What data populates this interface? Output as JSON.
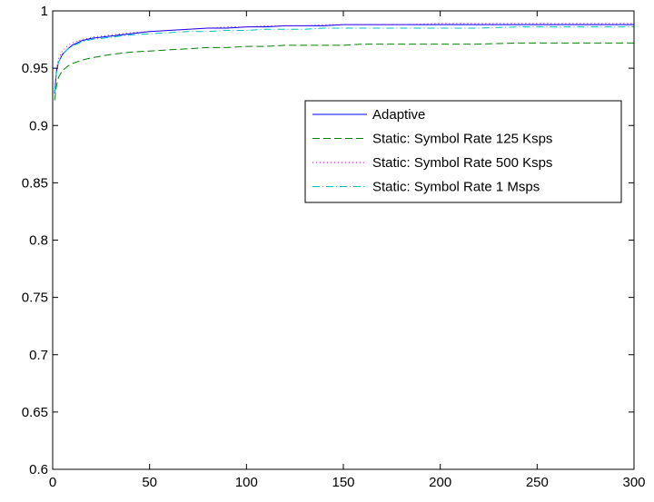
{
  "chart_data": {
    "type": "line",
    "title": "",
    "xlabel": "",
    "ylabel": "",
    "xlim": [
      0,
      300
    ],
    "ylim": [
      0.6,
      1
    ],
    "xticks": [
      0,
      50,
      100,
      150,
      200,
      250,
      300
    ],
    "xtick_labels": [
      "0",
      "50",
      "100",
      "150",
      "200",
      "250",
      "300"
    ],
    "yticks": [
      0.6,
      0.65,
      0.7,
      0.75,
      0.8,
      0.85,
      0.9,
      0.95,
      1
    ],
    "ytick_labels": [
      "0.6",
      "0.65",
      "0.7",
      "0.75",
      "0.8",
      "0.85",
      "0.9",
      "0.95",
      "1"
    ],
    "grid": false,
    "legend_position": "upper-right",
    "series": [
      {
        "name": "Adaptive",
        "color": "#0000ff",
        "style": "solid",
        "x": [
          1,
          2,
          3,
          5,
          8,
          10,
          15,
          20,
          30,
          40,
          50,
          60,
          70,
          80,
          90,
          100,
          110,
          120,
          130,
          140,
          150,
          160,
          180,
          200,
          220,
          240,
          260,
          280,
          300
        ],
        "y": [
          0.928,
          0.948,
          0.955,
          0.962,
          0.967,
          0.97,
          0.974,
          0.976,
          0.978,
          0.98,
          0.982,
          0.983,
          0.984,
          0.985,
          0.985,
          0.986,
          0.986,
          0.987,
          0.987,
          0.987,
          0.988,
          0.988,
          0.988,
          0.988,
          0.988,
          0.988,
          0.988,
          0.988,
          0.988
        ]
      },
      {
        "name": "Static: Symbol Rate 125 Ksps",
        "color": "#008000",
        "style": "dashed",
        "x": [
          1,
          2,
          3,
          5,
          8,
          10,
          15,
          20,
          30,
          40,
          50,
          60,
          70,
          80,
          90,
          100,
          110,
          120,
          130,
          140,
          150,
          160,
          180,
          200,
          220,
          240,
          260,
          280,
          300
        ],
        "y": [
          0.922,
          0.935,
          0.942,
          0.948,
          0.952,
          0.954,
          0.957,
          0.959,
          0.962,
          0.964,
          0.965,
          0.966,
          0.967,
          0.968,
          0.968,
          0.969,
          0.969,
          0.97,
          0.97,
          0.97,
          0.97,
          0.971,
          0.971,
          0.971,
          0.971,
          0.972,
          0.972,
          0.972,
          0.972
        ]
      },
      {
        "name": "Static: Symbol Rate 500 Ksps",
        "color": "#bf00bf",
        "style": "dotted",
        "x": [
          1,
          2,
          3,
          5,
          8,
          10,
          15,
          20,
          30,
          40,
          50,
          60,
          70,
          80,
          90,
          100,
          110,
          120,
          130,
          140,
          150,
          160,
          180,
          200,
          220,
          240,
          260,
          280,
          300
        ],
        "y": [
          0.93,
          0.95,
          0.958,
          0.965,
          0.97,
          0.972,
          0.975,
          0.977,
          0.979,
          0.981,
          0.982,
          0.983,
          0.984,
          0.985,
          0.986,
          0.986,
          0.987,
          0.987,
          0.987,
          0.988,
          0.988,
          0.988,
          0.988,
          0.989,
          0.989,
          0.989,
          0.989,
          0.989,
          0.989
        ]
      },
      {
        "name": "Static: Symbol Rate 1 Msps",
        "color": "#00bfbf",
        "style": "dashdot",
        "x": [
          1,
          2,
          3,
          5,
          8,
          10,
          15,
          20,
          30,
          40,
          50,
          60,
          70,
          80,
          90,
          100,
          110,
          120,
          130,
          140,
          150,
          160,
          180,
          200,
          220,
          240,
          260,
          280,
          300
        ],
        "y": [
          0.929,
          0.947,
          0.955,
          0.962,
          0.967,
          0.969,
          0.973,
          0.975,
          0.977,
          0.979,
          0.98,
          0.981,
          0.982,
          0.982,
          0.983,
          0.983,
          0.984,
          0.984,
          0.984,
          0.985,
          0.985,
          0.985,
          0.985,
          0.985,
          0.985,
          0.986,
          0.986,
          0.986,
          0.986
        ]
      }
    ]
  }
}
